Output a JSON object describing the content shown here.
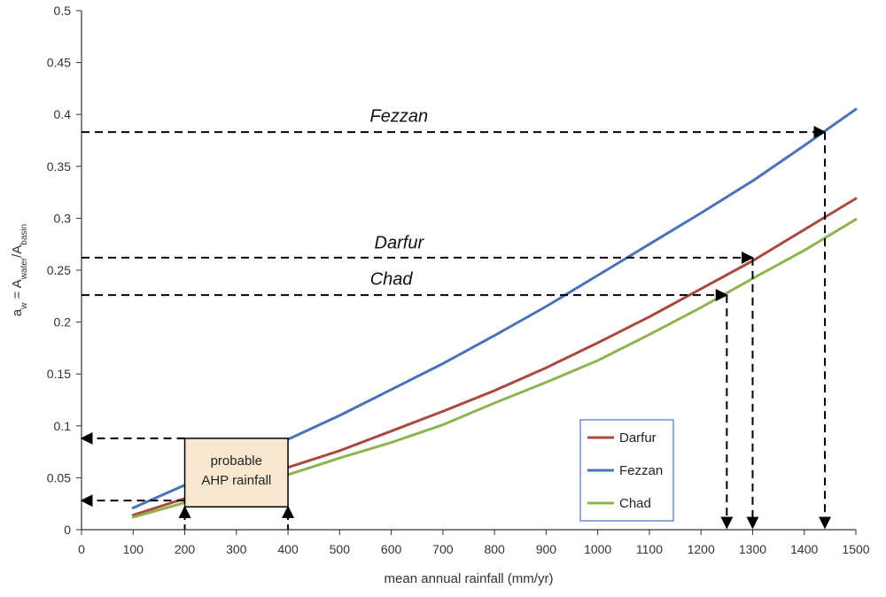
{
  "chart_data": {
    "type": "line",
    "title": "",
    "xlabel": "mean annual rainfall (mm/yr)",
    "ylabel": {
      "base": "a",
      "base_sub": "w",
      "eq": " = A",
      "num_sub": "water",
      "slash": "/A",
      "den_sub": "basin"
    },
    "xlim": [
      0,
      1500
    ],
    "ylim": [
      0,
      0.5
    ],
    "xticks": [
      0,
      100,
      200,
      300,
      400,
      500,
      600,
      700,
      800,
      900,
      1000,
      1100,
      1200,
      1300,
      1400,
      1500
    ],
    "yticks": [
      0,
      0.05,
      0.1,
      0.15,
      0.2,
      0.25,
      0.3,
      0.35,
      0.4,
      0.45,
      0.5
    ],
    "ytick_labels": [
      "0",
      "0.05",
      "0.1",
      "0.15",
      "0.2",
      "0.25",
      "0.3",
      "0.35",
      "0.4",
      "0.45",
      "0.5"
    ],
    "xtick_labels": [
      "0",
      "100",
      "200",
      "300",
      "400",
      "500",
      "600",
      "700",
      "800",
      "900",
      "1000",
      "1100",
      "1200",
      "1300",
      "1400",
      "1500"
    ],
    "grid": false,
    "legend_position": "bottom-right",
    "series": [
      {
        "name": "Darfur",
        "color": "#a94a41",
        "x": [
          100,
          200,
          300,
          400,
          500,
          600,
          700,
          800,
          900,
          1000,
          1100,
          1200,
          1300,
          1400,
          1500
        ],
        "y": [
          0.014,
          0.03,
          0.046,
          0.06,
          0.076,
          0.095,
          0.114,
          0.134,
          0.156,
          0.18,
          0.205,
          0.232,
          0.259,
          0.289,
          0.319
        ]
      },
      {
        "name": "Fezzan",
        "color": "#4a73b7",
        "x": [
          100,
          200,
          300,
          400,
          500,
          600,
          700,
          800,
          900,
          1000,
          1100,
          1200,
          1300,
          1400,
          1500
        ],
        "y": [
          0.021,
          0.043,
          0.065,
          0.087,
          0.11,
          0.135,
          0.16,
          0.187,
          0.215,
          0.245,
          0.275,
          0.305,
          0.336,
          0.37,
          0.405
        ]
      },
      {
        "name": "Chad",
        "color": "#8db44e",
        "x": [
          100,
          200,
          300,
          400,
          500,
          600,
          700,
          800,
          900,
          1000,
          1100,
          1200,
          1300,
          1400,
          1500
        ],
        "y": [
          0.012,
          0.026,
          0.039,
          0.053,
          0.069,
          0.084,
          0.101,
          0.122,
          0.142,
          0.163,
          0.188,
          0.214,
          0.242,
          0.269,
          0.299
        ]
      }
    ],
    "annotations": [
      {
        "label": "Fezzan",
        "y": 0.383,
        "x_end": 1440,
        "label_x": 615,
        "label_y": 0.393
      },
      {
        "label": "Darfur",
        "y": 0.262,
        "x_end": 1300,
        "label_x": 615,
        "label_y": 0.271
      },
      {
        "label": "Chad",
        "y": 0.226,
        "x_end": 1250,
        "label_x": 600,
        "label_y": 0.236
      }
    ],
    "rainfall_arrows": [
      {
        "x": 1250,
        "y_top": 0.226
      },
      {
        "x": 1300,
        "y_top": 0.262
      },
      {
        "x": 1440,
        "y_top": 0.383
      }
    ],
    "ahp_range": {
      "x_min": 200,
      "x_max": 400,
      "y_low": 0.028,
      "y_high": 0.088,
      "box_y_bottom": 0.022,
      "label_line1": "probable",
      "label_line2": "AHP rainfall",
      "box_fill": "#f8e8d2"
    }
  }
}
